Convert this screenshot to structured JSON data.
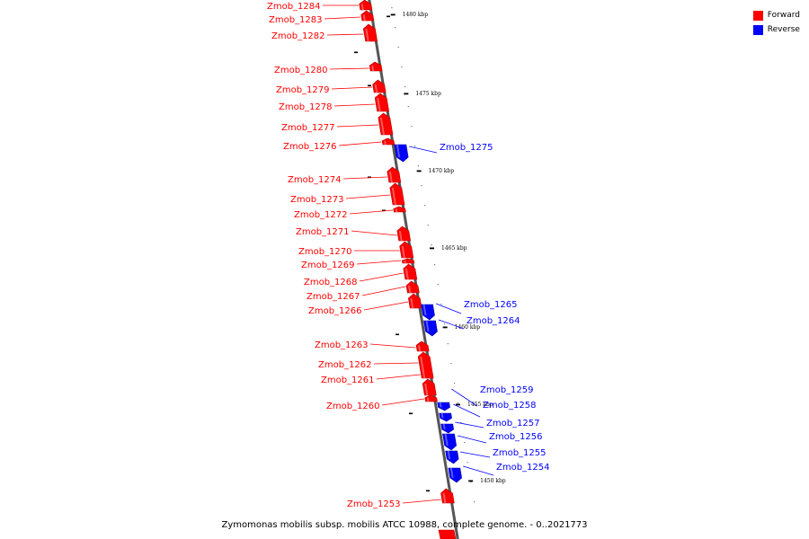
{
  "colors": {
    "forward": "#ff0000",
    "forward_dark": "#b30000",
    "reverse": "#0000ff",
    "reverse_dark": "#00009e",
    "axis": "#555555"
  },
  "legend": [
    {
      "label": "Forward",
      "color": "#ff0000"
    },
    {
      "label": "Reverse",
      "color": "#0000ff"
    }
  ],
  "caption": "Zymomonas mobilis subsp. mobilis ATCC 10988, complete genome. - 0..2021773",
  "ticks": [
    {
      "label": "1480 kbp"
    },
    {
      "label": "1475 kbp"
    },
    {
      "label": "1470 kbp"
    },
    {
      "label": "1465 kbp"
    },
    {
      "label": "1460 kbp"
    },
    {
      "label": "1455 kbp"
    },
    {
      "label": "1450 kbp"
    }
  ],
  "genes": [
    {
      "name": "Zmob_1284",
      "strand": "forward"
    },
    {
      "name": "Zmob_1283",
      "strand": "forward"
    },
    {
      "name": "Zmob_1282",
      "strand": "forward"
    },
    {
      "name": "Zmob_1280",
      "strand": "forward"
    },
    {
      "name": "Zmob_1279",
      "strand": "forward"
    },
    {
      "name": "Zmob_1278",
      "strand": "forward"
    },
    {
      "name": "Zmob_1277",
      "strand": "forward"
    },
    {
      "name": "Zmob_1276",
      "strand": "forward"
    },
    {
      "name": "Zmob_1275",
      "strand": "reverse"
    },
    {
      "name": "Zmob_1274",
      "strand": "forward"
    },
    {
      "name": "Zmob_1273",
      "strand": "forward"
    },
    {
      "name": "Zmob_1272",
      "strand": "forward"
    },
    {
      "name": "Zmob_1271",
      "strand": "forward"
    },
    {
      "name": "Zmob_1270",
      "strand": "forward"
    },
    {
      "name": "Zmob_1269",
      "strand": "forward"
    },
    {
      "name": "Zmob_1268",
      "strand": "forward"
    },
    {
      "name": "Zmob_1267",
      "strand": "forward"
    },
    {
      "name": "Zmob_1266",
      "strand": "forward"
    },
    {
      "name": "Zmob_1265",
      "strand": "reverse"
    },
    {
      "name": "Zmob_1264",
      "strand": "reverse"
    },
    {
      "name": "Zmob_1263",
      "strand": "forward"
    },
    {
      "name": "Zmob_1262",
      "strand": "forward"
    },
    {
      "name": "Zmob_1261",
      "strand": "forward"
    },
    {
      "name": "Zmob_1260",
      "strand": "forward"
    },
    {
      "name": "Zmob_1259",
      "strand": "reverse"
    },
    {
      "name": "Zmob_1258",
      "strand": "reverse"
    },
    {
      "name": "Zmob_1257",
      "strand": "reverse"
    },
    {
      "name": "Zmob_1256",
      "strand": "reverse"
    },
    {
      "name": "Zmob_1255",
      "strand": "reverse"
    },
    {
      "name": "Zmob_1254",
      "strand": "reverse"
    },
    {
      "name": "Zmob_1253",
      "strand": "forward"
    }
  ]
}
